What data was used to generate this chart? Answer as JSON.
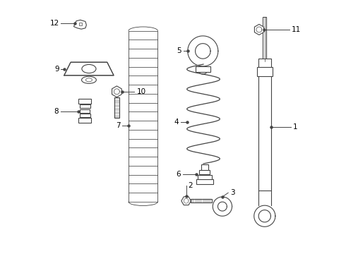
{
  "background_color": "#ffffff",
  "line_color": "#444444",
  "label_color": "#000000",
  "fig_width": 4.9,
  "fig_height": 3.6,
  "dpi": 100
}
